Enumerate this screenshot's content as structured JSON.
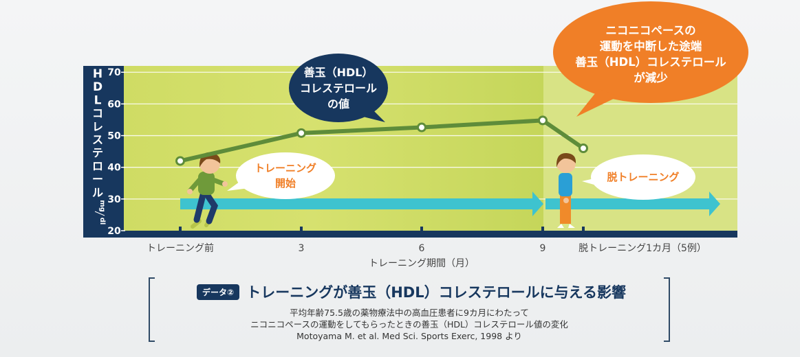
{
  "chart_data": {
    "type": "line",
    "ylabel_chars": [
      "H",
      "D",
      "L",
      "コ",
      "レ",
      "ス",
      "テ",
      "ロ",
      "ー",
      "ル"
    ],
    "unit_top": "mg",
    "unit_bottom": "dl",
    "xlabel": "トレーニング期間（月）",
    "ylim": [
      20,
      72
    ],
    "yticks": [
      20,
      30,
      40,
      50,
      60,
      70
    ],
    "x_tick_labels": [
      "トレーニング前",
      "3",
      "6",
      "9",
      "脱トレーニング1カ月（5例）"
    ],
    "grid": true,
    "series": [
      {
        "points": [
          {
            "x": "トレーニング前",
            "y": 42
          },
          {
            "x": "3",
            "y": 50.8
          },
          {
            "x": "6",
            "y": 52.6
          },
          {
            "x": "9",
            "y": 54.8
          },
          {
            "x": "脱トレーニング1カ月（5例）",
            "y": 46
          }
        ],
        "color": "#5e8c3a"
      }
    ],
    "annotations": {
      "hdl_value_bubble": [
        "善玉（HDL）",
        "コレステロール",
        "の値"
      ],
      "stop_bubble": [
        "ニコニコペースの",
        "運動を中断した途端",
        "善玉（HDL）コレステロール",
        "が減少"
      ],
      "training_start_bubble": [
        "トレーニング",
        "開始"
      ],
      "detraining_bubble": [
        "脱トレーニング"
      ]
    },
    "colors": {
      "plot_bg": "#d5e06a",
      "detraining_bg": "#d8e385",
      "line": "#5e8c3a",
      "arrow": "#3ec3cf",
      "axis": "#17375e",
      "orange": "#f07f27",
      "navy_bubble": "#17375e"
    }
  },
  "caption": {
    "badge": "データ②",
    "title": "トレーニングが善玉（HDL）コレステロールに与える影響",
    "line1": "平均年齢75.5歳の薬物療法中の高血圧患者に9カ月にわたって",
    "line2": "ニコニコペースの運動をしてもらったときの善玉（HDL）コレステロール値の変化",
    "line3": "Motoyama M. et al. Med Sci. Sports Exerc, 1998 より"
  }
}
